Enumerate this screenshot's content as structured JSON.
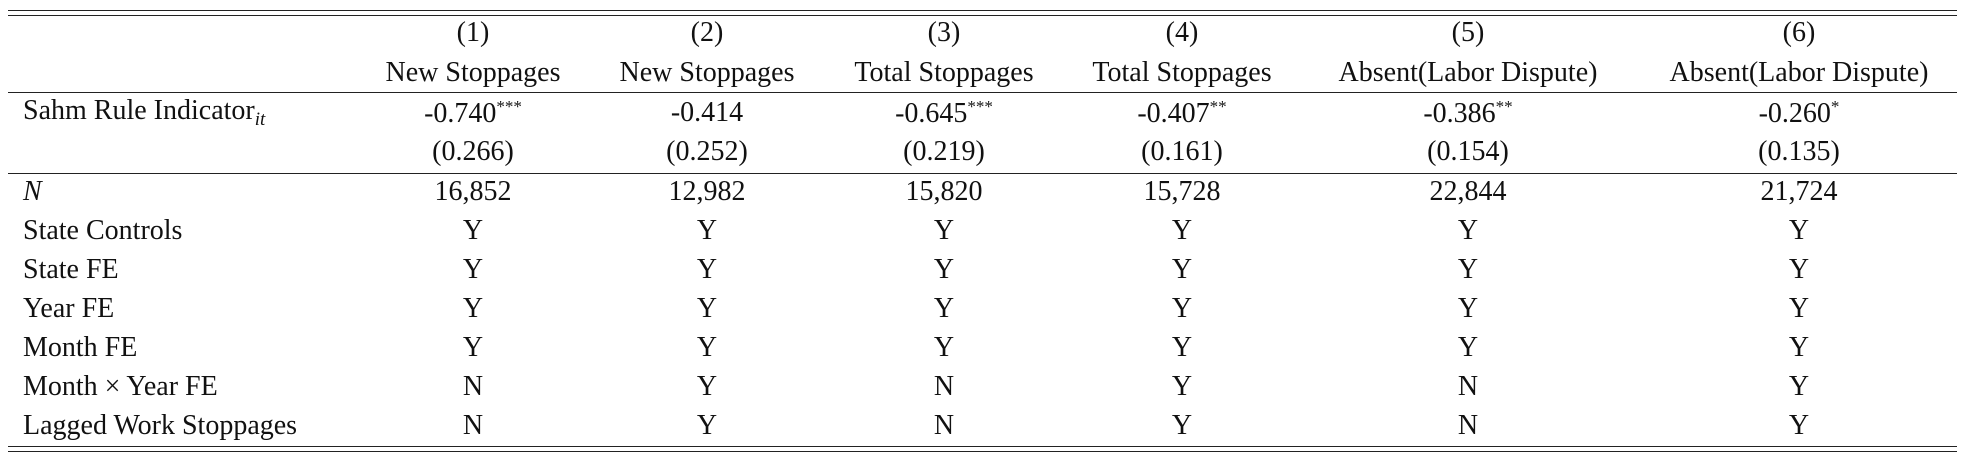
{
  "table": {
    "column_numbers": [
      "(1)",
      "(2)",
      "(3)",
      "(4)",
      "(5)",
      "(6)"
    ],
    "column_names": [
      "New Stoppages",
      "New Stoppages",
      "Total Stoppages",
      "Total Stoppages",
      "Absent(Labor Dispute)",
      "Absent(Labor Dispute)"
    ],
    "coefficient_row": {
      "label": "Sahm Rule Indicator",
      "label_subscript": "it",
      "cells": [
        {
          "value": "-0.740",
          "stars": "***"
        },
        {
          "value": "-0.414"
        },
        {
          "value": "-0.645",
          "stars": "***"
        },
        {
          "value": "-0.407",
          "stars": "**"
        },
        {
          "value": "-0.386",
          "stars": "**"
        },
        {
          "value": "-0.260",
          "stars": "*"
        }
      ]
    },
    "standard_errors": [
      "(0.266)",
      "(0.252)",
      "(0.219)",
      "(0.161)",
      "(0.154)",
      "(0.135)"
    ],
    "rows": [
      {
        "label": "N",
        "values": [
          "16,852",
          "12,982",
          "15,820",
          "15,728",
          "22,844",
          "21,724"
        ]
      },
      {
        "label": "State Controls",
        "values": [
          "Y",
          "Y",
          "Y",
          "Y",
          "Y",
          "Y"
        ]
      },
      {
        "label": "State FE",
        "values": [
          "Y",
          "Y",
          "Y",
          "Y",
          "Y",
          "Y"
        ]
      },
      {
        "label": "Year FE",
        "values": [
          "Y",
          "Y",
          "Y",
          "Y",
          "Y",
          "Y"
        ]
      },
      {
        "label": "Month FE",
        "values": [
          "Y",
          "Y",
          "Y",
          "Y",
          "Y",
          "Y"
        ]
      },
      {
        "label": "Month × Year FE",
        "values": [
          "N",
          "Y",
          "N",
          "Y",
          "N",
          "Y"
        ]
      },
      {
        "label": "Lagged Work Stoppages",
        "values": [
          "N",
          "Y",
          "N",
          "Y",
          "N",
          "Y"
        ]
      }
    ]
  }
}
